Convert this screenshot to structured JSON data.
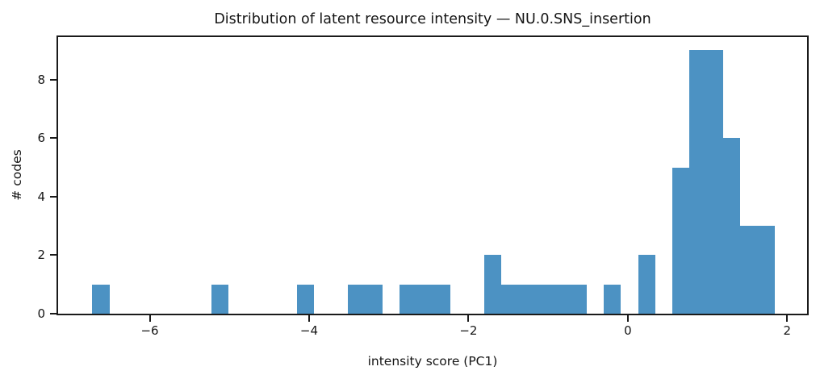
{
  "chart_data": {
    "type": "bar",
    "subtype": "histogram",
    "title": "Distribution of latent resource intensity — NU.0.SNS_insertion",
    "xlabel": "intensity score (PC1)",
    "ylabel": "# codes",
    "xlim": [
      -7.15,
      2.25
    ],
    "ylim": [
      0,
      9.45
    ],
    "x_ticks": [
      {
        "value": -6,
        "label": "−6"
      },
      {
        "value": -4,
        "label": "−4"
      },
      {
        "value": -2,
        "label": "−2"
      },
      {
        "value": 0,
        "label": "0"
      },
      {
        "value": 2,
        "label": "2"
      }
    ],
    "y_ticks": [
      {
        "value": 0,
        "label": "0"
      },
      {
        "value": 2,
        "label": "2"
      },
      {
        "value": 4,
        "label": "4"
      },
      {
        "value": 6,
        "label": "6"
      },
      {
        "value": 8,
        "label": "8"
      }
    ],
    "bin_width": 0.214,
    "bars": [
      {
        "x0": -6.72,
        "x1": -6.506,
        "count": 1
      },
      {
        "x0": -5.222,
        "x1": -5.008,
        "count": 1
      },
      {
        "x0": -4.152,
        "x1": -3.938,
        "count": 1
      },
      {
        "x0": -3.51,
        "x1": -3.082,
        "count": 1
      },
      {
        "x0": -2.868,
        "x1": -2.226,
        "count": 1
      },
      {
        "x0": -1.798,
        "x1": -1.584,
        "count": 2
      },
      {
        "x0": -1.584,
        "x1": -0.514,
        "count": 1
      },
      {
        "x0": -0.3,
        "x1": -0.086,
        "count": 1
      },
      {
        "x0": 0.128,
        "x1": 0.342,
        "count": 2
      },
      {
        "x0": 0.556,
        "x1": 0.77,
        "count": 5
      },
      {
        "x0": 0.77,
        "x1": 1.198,
        "count": 9
      },
      {
        "x0": 1.198,
        "x1": 1.412,
        "count": 6
      },
      {
        "x0": 1.412,
        "x1": 1.84,
        "count": 3
      }
    ],
    "bar_color": "#4c92c3",
    "spine_color": "#1a1a1a",
    "grid": "off",
    "legend": "none"
  }
}
